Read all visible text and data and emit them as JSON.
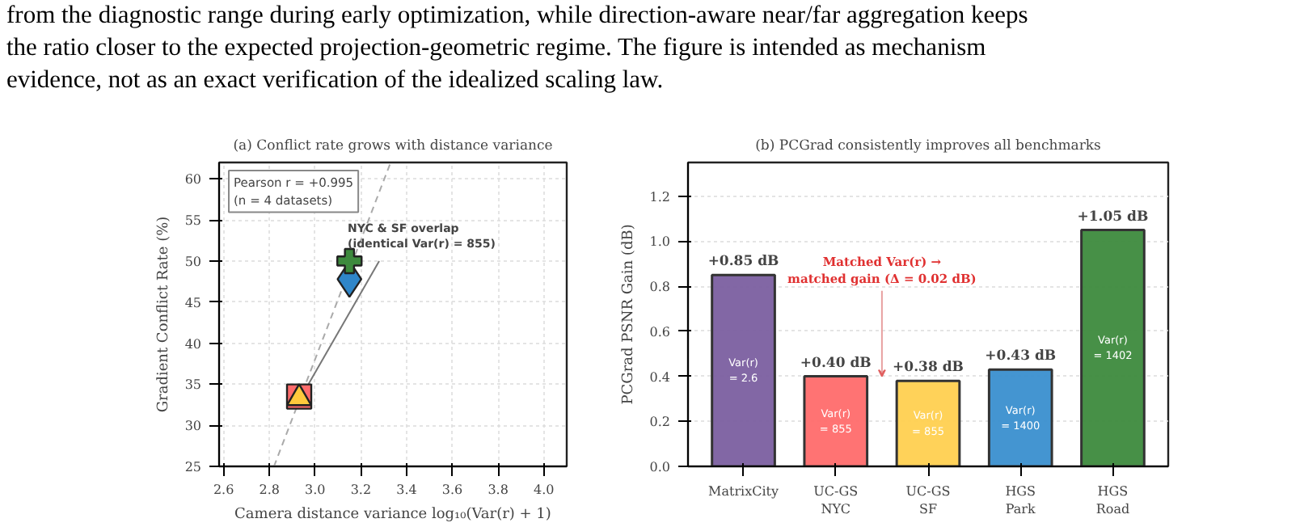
{
  "chart_data": [
    {
      "type": "other",
      "annotations": [
        "from the diagnostic range during early optimization, while direction-aware near/far aggregation keeps",
        "the ratio closer to the expected projection-geometric regime. The figure is intended as mechanism",
        "evidence, not as an exact verification of the idealized scaling law."
      ]
    },
    {
      "type": "scatter",
      "title": "(a) Conflict rate grows with distance variance",
      "xlabel": "Camera distance variance log₁₀(Var(r) + 1)",
      "ylabel": "Gradient Conflict Rate (%)",
      "xlim": [
        2.58,
        4.1
      ],
      "ylim": [
        25,
        62
      ],
      "xticks": [
        2.6,
        2.8,
        {
          "value": 3,
          "label": "3.0"
        },
        3.2,
        3.4,
        3.6,
        3.8,
        {
          "value": 4,
          "label": "4.0"
        }
      ],
      "yticks": [
        25,
        30,
        35,
        40,
        45,
        50,
        55,
        60
      ],
      "grid": true,
      "series": [
        {
          "type": "line",
          "color": "#aaaaaa",
          "line_style": "dashed",
          "x": [
            2.82,
            3.33
          ],
          "values": [
            25,
            62
          ]
        },
        {
          "type": "line",
          "color": "#777777",
          "line_style": "solid",
          "x": [
            2.95,
            3.28
          ],
          "values": [
            34,
            50
          ]
        },
        {
          "type": "scatter",
          "marker": "square",
          "color": "#ff6b6b",
          "x": [
            2.93
          ],
          "values": [
            33.5
          ]
        },
        {
          "type": "scatter",
          "marker": "triangle",
          "color": "#ffc93c",
          "x": [
            2.93
          ],
          "values": [
            33.3
          ]
        },
        {
          "type": "scatter",
          "marker": "diamond",
          "color": "#2f86c9",
          "x": [
            3.15
          ],
          "values": [
            47.8
          ]
        },
        {
          "type": "scatter",
          "marker": "cross",
          "color": "#3d8a3d",
          "x": [
            3.15
          ],
          "values": [
            50.0
          ]
        }
      ],
      "annotations": [
        "Pearson r = +0.995\n(n = 4 datasets)",
        "NYC & SF overlap\n(identical Var(r) = 855)"
      ]
    },
    {
      "type": "bar",
      "title": "(b) PCGrad consistently improves all benchmarks",
      "ylabel": "PCGrad PSNR Gain (dB)",
      "categories": [
        "MatrixCity",
        "UC-GS\nNYC",
        "UC-GS\nSF",
        "HGS\nPark",
        "HGS\nRoad"
      ],
      "values": [
        0.85,
        0.4,
        0.38,
        0.43,
        1.05
      ],
      "colors": [
        "#7b5fa0",
        "#ff6b6b",
        "#ffd050",
        "#3a8fcf",
        "#3d8a3d"
      ],
      "value_labels": [
        "+0.85 dB",
        "+0.40 dB",
        "+0.38 dB",
        "+0.43 dB",
        "+1.05 dB"
      ],
      "ylim": [
        0,
        1.35
      ],
      "yticks": [
        {
          "value": 0,
          "label": "0.0"
        },
        0.2,
        0.4,
        0.6,
        0.8,
        {
          "value": 1,
          "label": "1.0"
        },
        1.2
      ],
      "grid": "y",
      "annotations": [
        "Var(r)\n= 2.6",
        "Var(r)\n= 855",
        "Var(r)\n= 855",
        "Var(r)\n= 1400",
        "Var(r)\n= 1402",
        {
          "text": "Matched Var(r) →\nmatched gain (Δ = 0.02 dB)",
          "y": 0.4
        }
      ]
    }
  ]
}
